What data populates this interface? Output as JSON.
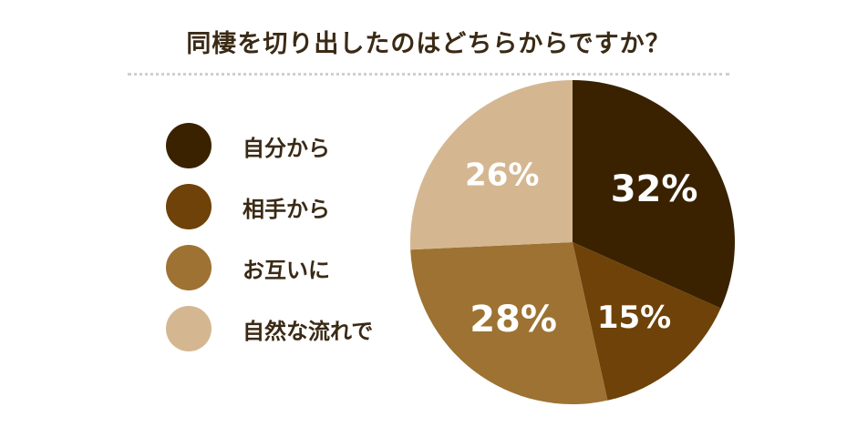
{
  "chart_data": {
    "type": "pie",
    "title": "同棲を切り出したのはどちらからですか？",
    "slices": [
      {
        "label": "自分から",
        "value": 32,
        "display": "32%",
        "color": "#3a2200",
        "text_color": "#ffffff"
      },
      {
        "label": "相手から",
        "value": 15,
        "display": "15%",
        "color": "#6e4208",
        "text_color": "#ffffff"
      },
      {
        "label": "お互いに",
        "value": 28,
        "display": "28%",
        "color": "#9d7232",
        "text_color": "#ffffff"
      },
      {
        "label": "自然な流れで",
        "value": 26,
        "display": "26%",
        "color": "#d4b791",
        "text_color": "#ffffff"
      }
    ],
    "legend_position": "left"
  }
}
